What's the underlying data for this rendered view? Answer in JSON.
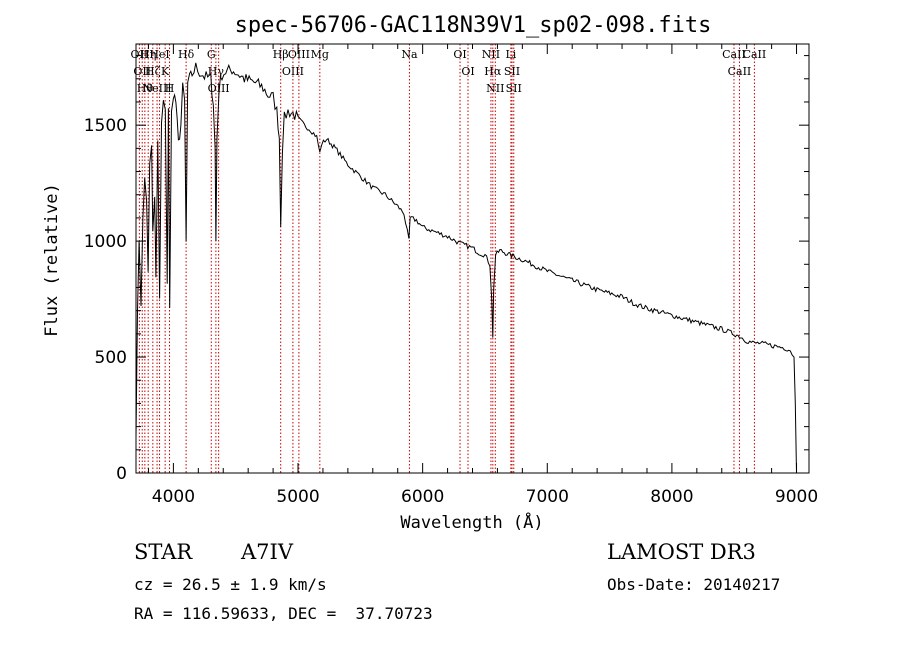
{
  "chart_data": {
    "type": "line",
    "title": "spec-56706-GAC118N39V1_sp02-098.fits",
    "xlabel": "Wavelength (Å)",
    "ylabel": "Flux (relative)",
    "xlim": [
      3700,
      9100
    ],
    "ylim": [
      0,
      1850
    ],
    "x_ticks": [
      4000,
      5000,
      6000,
      7000,
      8000,
      9000
    ],
    "x_tick_labels": [
      "4000",
      "5000",
      "6000",
      "7000",
      "8000",
      "9000"
    ],
    "y_ticks": [
      0,
      500,
      1000,
      1500
    ],
    "y_tick_labels": [
      "0",
      "500",
      "1000",
      "1500"
    ],
    "series": [
      {
        "name": "spectrum",
        "color": "#000000",
        "x": [
          3700,
          3712,
          3725,
          3740,
          3755,
          3770,
          3785,
          3797,
          3810,
          3825,
          3835,
          3850,
          3860,
          3875,
          3889,
          3905,
          3920,
          3935,
          3950,
          3960,
          3970,
          3985,
          4000,
          4020,
          4040,
          4060,
          4075,
          4090,
          4102,
          4115,
          4130,
          4150,
          4180,
          4210,
          4250,
          4300,
          4320,
          4335,
          4341,
          4350,
          4365,
          4390,
          4420,
          4470,
          4520,
          4570,
          4620,
          4670,
          4720,
          4760,
          4800,
          4830,
          4850,
          4861,
          4875,
          4890,
          4920,
          4960,
          5000,
          5050,
          5100,
          5150,
          5175,
          5190,
          5230,
          5300,
          5400,
          5500,
          5600,
          5700,
          5800,
          5850,
          5890,
          5900,
          5950,
          6000,
          6100,
          6200,
          6300,
          6400,
          6450,
          6500,
          6540,
          6555,
          6563,
          6570,
          6585,
          6620,
          6700,
          6800,
          7000,
          7200,
          7400,
          7600,
          7700,
          7800,
          8000,
          8200,
          8400,
          8498,
          8542,
          8600,
          8662,
          8700,
          8800,
          8900,
          8950,
          8980,
          8990,
          9000
        ],
        "values": [
          150,
          700,
          1000,
          720,
          1100,
          1300,
          1150,
          880,
          1350,
          1400,
          1040,
          1200,
          830,
          1420,
          750,
          1500,
          1600,
          1550,
          830,
          1580,
          700,
          1550,
          1640,
          1600,
          1420,
          1500,
          1660,
          1600,
          990,
          1680,
          1700,
          1720,
          1750,
          1730,
          1710,
          1700,
          1600,
          1400,
          1000,
          1450,
          1650,
          1720,
          1730,
          1740,
          1720,
          1700,
          1690,
          1680,
          1660,
          1630,
          1620,
          1560,
          1450,
          1080,
          1400,
          1530,
          1560,
          1550,
          1530,
          1500,
          1480,
          1450,
          1380,
          1420,
          1440,
          1400,
          1330,
          1280,
          1230,
          1200,
          1150,
          1120,
          1000,
          1100,
          1090,
          1060,
          1040,
          1020,
          990,
          970,
          950,
          940,
          900,
          750,
          580,
          800,
          940,
          960,
          940,
          920,
          870,
          830,
          790,
          760,
          730,
          710,
          680,
          650,
          620,
          600,
          590,
          570,
          560,
          560,
          550,
          540,
          530,
          500,
          300,
          0
        ]
      }
    ],
    "lines": [
      {
        "wavelength": 3727,
        "label": "OII"
      },
      {
        "wavelength": 3750,
        "label": "OII"
      },
      {
        "wavelength": 3771,
        "label": "Hθ"
      },
      {
        "wavelength": 3798,
        "label": "Hη"
      },
      {
        "wavelength": 3835,
        "label": "Hζ"
      },
      {
        "wavelength": 3869,
        "label": "NeIII"
      },
      {
        "wavelength": 3889,
        "label": "HeI"
      },
      {
        "wavelength": 3934,
        "label": "K"
      },
      {
        "wavelength": 3969,
        "label": "H"
      },
      {
        "wavelength": 4102,
        "label": "Hδ"
      },
      {
        "wavelength": 4304,
        "label": "G"
      },
      {
        "wavelength": 4341,
        "label": "Hγ"
      },
      {
        "wavelength": 4363,
        "label": "OIII"
      },
      {
        "wavelength": 4861,
        "label": "Hβ"
      },
      {
        "wavelength": 4959,
        "label": "OIII"
      },
      {
        "wavelength": 5007,
        "label": "OIII"
      },
      {
        "wavelength": 5175,
        "label": "Mg"
      },
      {
        "wavelength": 5894,
        "label": "Na"
      },
      {
        "wavelength": 6300,
        "label": "OI"
      },
      {
        "wavelength": 6364,
        "label": "OI"
      },
      {
        "wavelength": 6548,
        "label": "NII"
      },
      {
        "wavelength": 6563,
        "label": "Hα"
      },
      {
        "wavelength": 6583,
        "label": "NII"
      },
      {
        "wavelength": 6708,
        "label": "Li"
      },
      {
        "wavelength": 6717,
        "label": "SII"
      },
      {
        "wavelength": 6731,
        "label": "SII"
      },
      {
        "wavelength": 8498,
        "label": "CaII"
      },
      {
        "wavelength": 8542,
        "label": "CaII"
      },
      {
        "wavelength": 8662,
        "label": "CaII"
      }
    ],
    "line_color": "#cc0000"
  },
  "info": {
    "object_class": "STAR",
    "subclass": "A7IV",
    "survey": "LAMOST DR3",
    "cz": "cz = 26.5 ± 1.9 km/s",
    "obs_date": "Obs-Date: 20140217",
    "coords": "RA = 116.59633, DEC =  37.70723"
  }
}
